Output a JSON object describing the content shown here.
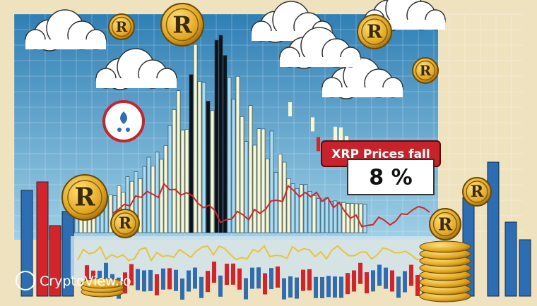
{
  "callout": {
    "title": "XRP Prices fall",
    "value": "8 %"
  },
  "coin_letter": "R",
  "watermark": "CryptoView.io"
}
